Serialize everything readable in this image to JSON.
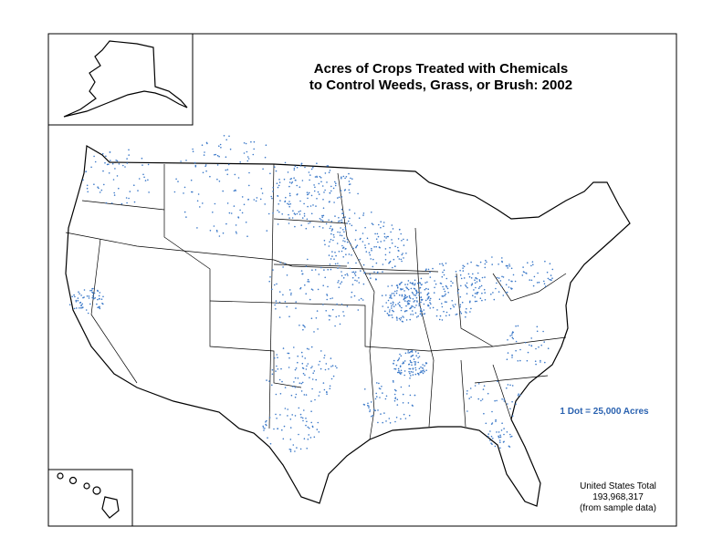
{
  "title": {
    "line1": "Acres of Crops Treated with Chemicals",
    "line2": "to Control  Weeds, Grass, or Brush:  2002"
  },
  "legend": "1 Dot = 25,000 Acres",
  "total": {
    "label": "United States Total",
    "value": "193,968,317",
    "note": "(from sample data)"
  }
}
